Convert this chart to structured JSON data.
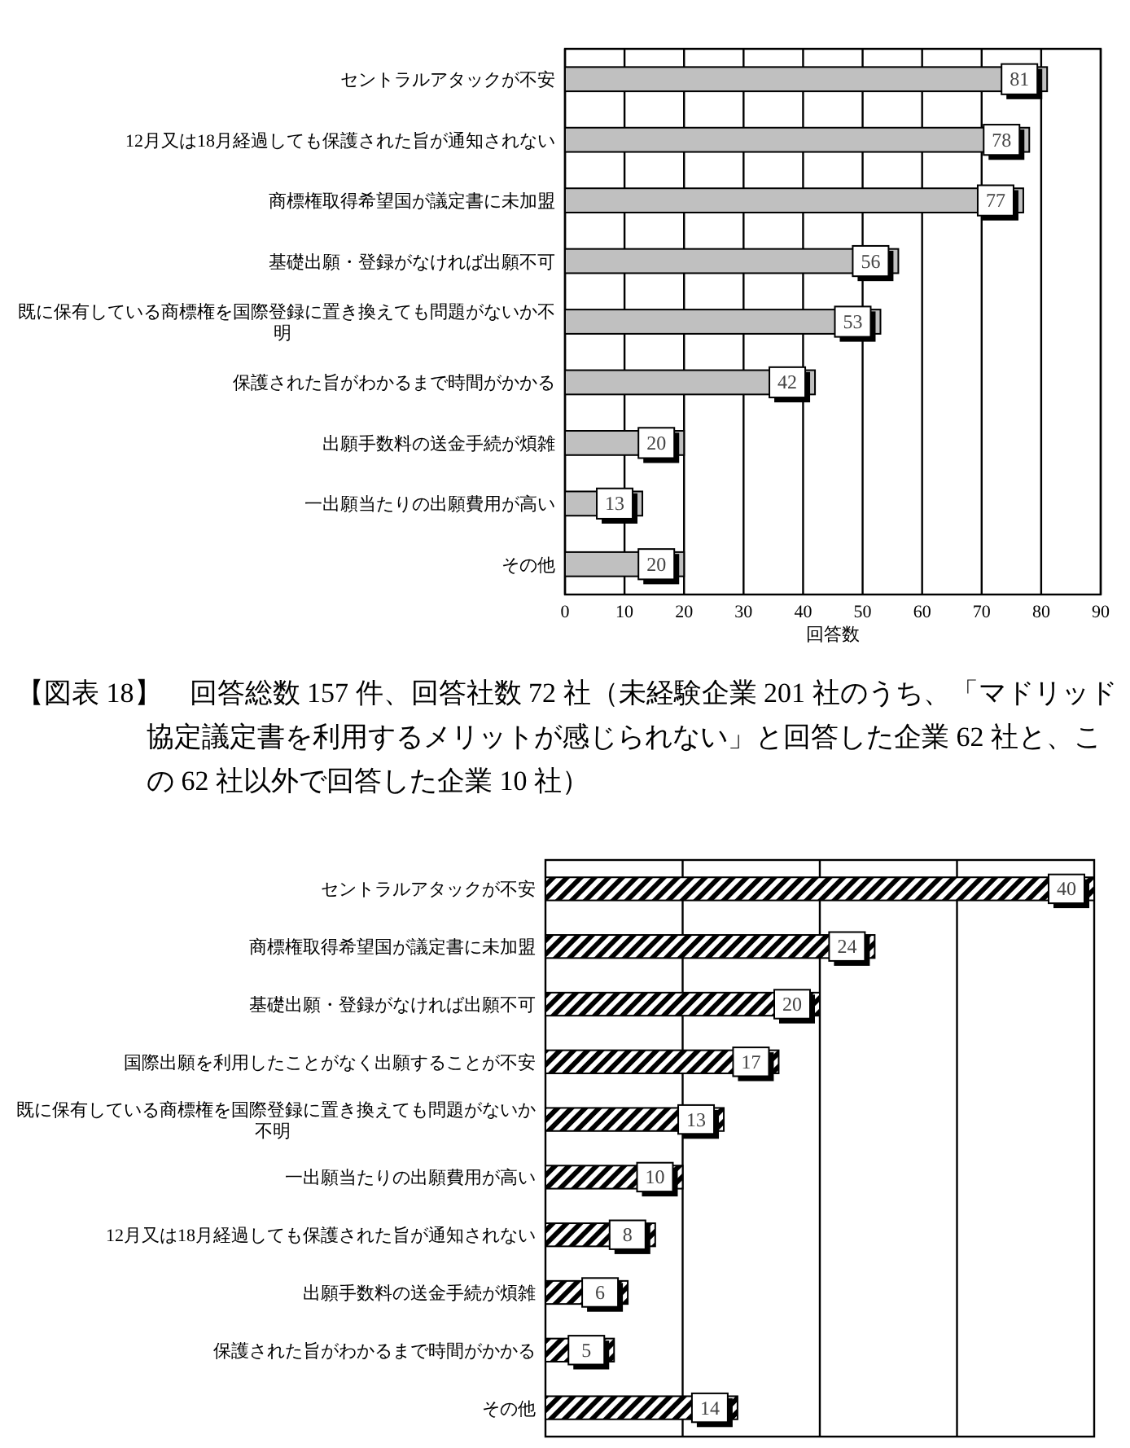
{
  "chart_data": [
    {
      "type": "bar",
      "orientation": "horizontal",
      "xlabel": "回答数",
      "categories": [
        "セントラルアタックが不安",
        "12月又は18月経過しても保護された旨が通知されない",
        "商標権取得希望国が議定書に未加盟",
        "基礎出願・登録がなければ出願不可",
        "既に保有している商標権を国際登録に置き換えても問題がないか不明",
        "保護された旨がわかるまで時間がかかる",
        "出願手数料の送金手続が煩雑",
        "一出願当たりの出願費用が高い",
        "その他"
      ],
      "values": [
        81,
        78,
        77,
        56,
        53,
        42,
        20,
        13,
        20
      ],
      "color": "#c0c0c0",
      "data_labels": true,
      "xlim": [
        0,
        90
      ],
      "xticks": [
        0,
        10,
        20,
        30,
        40,
        50,
        60,
        70,
        80,
        90
      ],
      "grid": "x"
    },
    {
      "type": "bar",
      "orientation": "horizontal",
      "title": "【図表 18】　回答総数 157 件、回答社数 72 社（未経験企業 201 社のうち、「マドリッド協定議定書を利用するメリットが感じられない」と回答した企業 62 社と、この 62 社以外で回答した企業 10 社）",
      "categories": [
        "セントラルアタックが不安",
        "商標権取得希望国が議定書に未加盟",
        "基礎出願・登録がなければ出願不可",
        "国際出願を利用したことがなく出願することが不安",
        "既に保有している商標権を国際登録に置き換えても問題がないか不明",
        "一出願当たりの出願費用が高い",
        "12月又は18月経過しても保護された旨が通知されない",
        "出願手数料の送金手続が煩雑",
        "保護された旨がわかるまで時間がかかる",
        "その他"
      ],
      "values": [
        40,
        24,
        20,
        17,
        13,
        10,
        8,
        6,
        5,
        14
      ],
      "color": "#000000",
      "data_labels": true,
      "xlim": [
        0,
        40
      ],
      "xticks": [
        {
          "value": 10,
          "label": null
        },
        {
          "value": 20,
          "label": null
        },
        {
          "value": 30,
          "label": null
        }
      ],
      "grid": "x",
      "tick_labels": false
    }
  ]
}
